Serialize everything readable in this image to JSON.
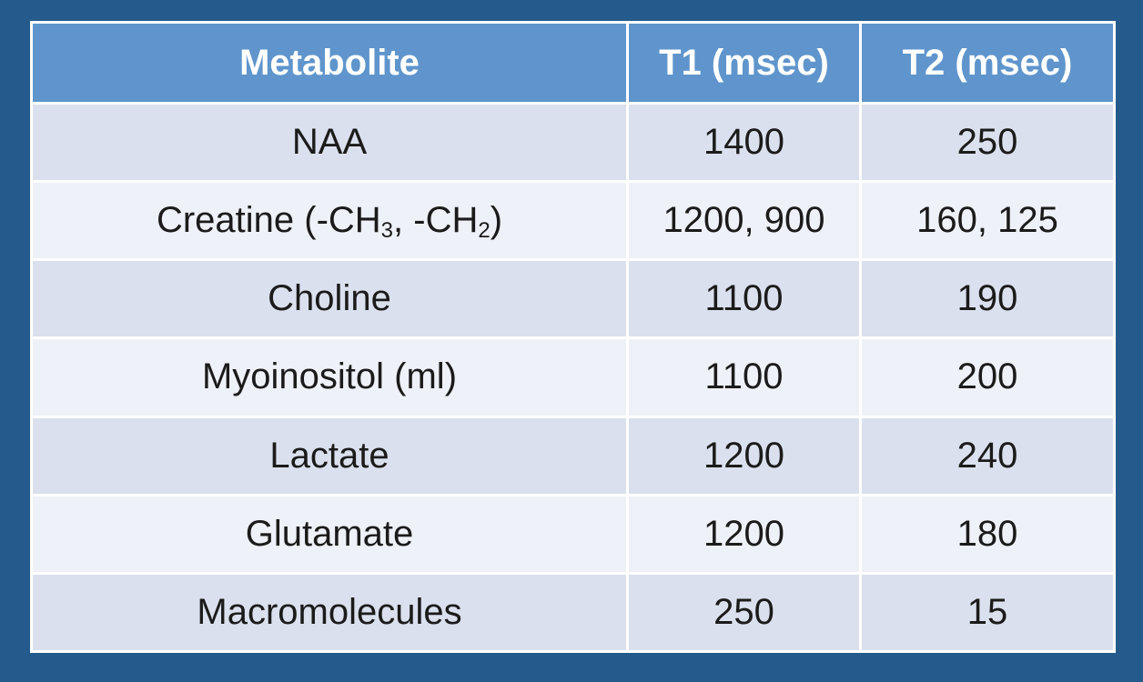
{
  "colors": {
    "background": "#255b8c",
    "header_bg": "#5f95cc",
    "row_odd_bg": "#dae0ed",
    "row_even_bg": "#eef1f7",
    "header_text": "#ffffff",
    "body_text": "#1b1b1b"
  },
  "table": {
    "headers": [
      "Metabolite",
      "T1 (msec)",
      "T2 (msec)"
    ],
    "rows": [
      {
        "metabolite": "NAA",
        "t1": "1400",
        "t2": "250"
      },
      {
        "metabolite": "Creatine (-CH",
        "metabolite_sub1": "3",
        "metabolite_mid": ", -CH",
        "metabolite_sub2": "2",
        "metabolite_end": ")",
        "t1": "1200, 900",
        "t2": "160, 125"
      },
      {
        "metabolite": "Choline",
        "t1": "1100",
        "t2": "190"
      },
      {
        "metabolite": "Myoinositol (ml)",
        "t1": "1100",
        "t2": "200"
      },
      {
        "metabolite": "Lactate",
        "t1": "1200",
        "t2": "240"
      },
      {
        "metabolite": "Glutamate",
        "t1": "1200",
        "t2": "180"
      },
      {
        "metabolite": "Macromolecules",
        "t1": "250",
        "t2": "15"
      }
    ]
  }
}
